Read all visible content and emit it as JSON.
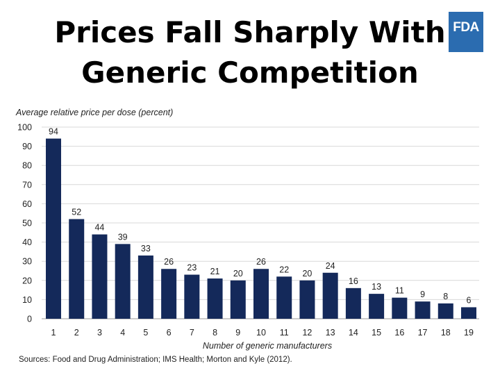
{
  "slide": {
    "title_line1": "Prices Fall Sharply With",
    "title_line2": "Generic Competition",
    "logo_text": "FDA",
    "sources": "Sources: Food and Drug Administration; IMS Health; Morton and Kyle (2012)."
  },
  "chart_data": {
    "type": "bar",
    "ylabel": "Average relative price per dose (percent)",
    "xlabel": "Number of generic manufacturers",
    "categories": [
      "1",
      "2",
      "3",
      "4",
      "5",
      "6",
      "7",
      "8",
      "9",
      "10",
      "11",
      "12",
      "13",
      "14",
      "15",
      "16",
      "17",
      "18",
      "19"
    ],
    "values": [
      94,
      52,
      44,
      39,
      33,
      26,
      23,
      21,
      20,
      26,
      22,
      20,
      24,
      16,
      13,
      11,
      9,
      8,
      6
    ],
    "ylim": [
      0,
      100
    ],
    "yticks": [
      0,
      10,
      20,
      30,
      40,
      50,
      60,
      70,
      80,
      90,
      100
    ],
    "grid": true,
    "bar_color": "#14295a"
  }
}
